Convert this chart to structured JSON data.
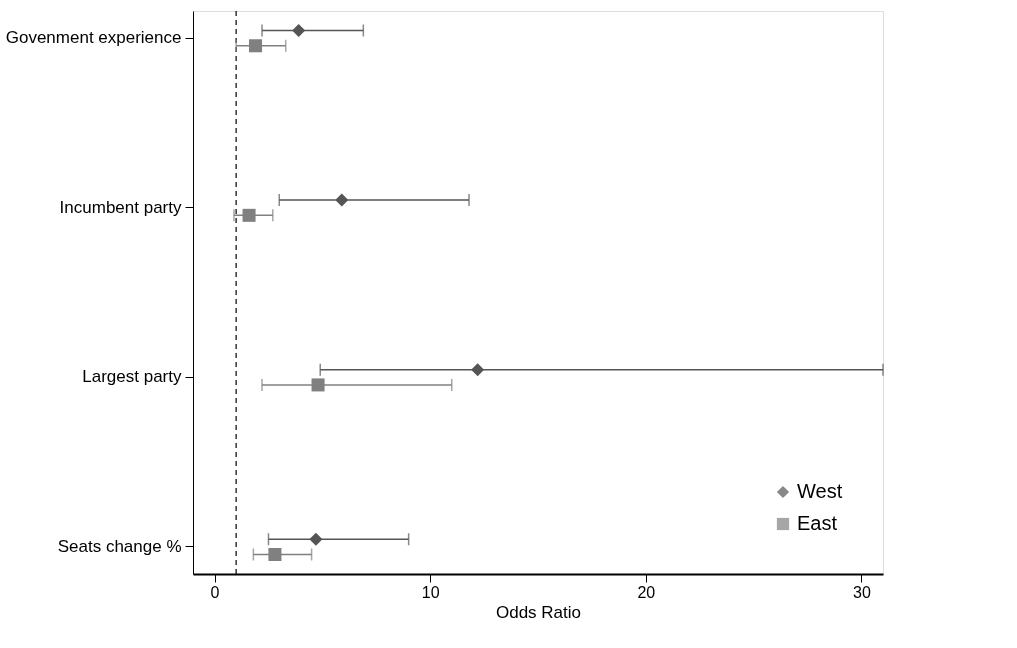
{
  "chart_data": {
    "type": "scatter",
    "orientation": "horizontal",
    "xlabel": "Odds Ratio",
    "categories": [
      "Govenment experience",
      "Incumbent party",
      "Largest party",
      "Seats change %"
    ],
    "series": [
      {
        "name": "West",
        "color": "#555555",
        "marker": "diamond",
        "values": [
          3.9,
          5.9,
          12.2,
          4.7
        ],
        "errors": [
          [
            2.2,
            6.9
          ],
          [
            3.0,
            11.8
          ],
          [
            4.9,
            31
          ],
          [
            2.5,
            9.0
          ]
        ]
      },
      {
        "name": "East",
        "color": "#808080",
        "marker": "square",
        "values": [
          1.9,
          1.6,
          4.8,
          2.8
        ],
        "errors": [
          [
            1.0,
            3.3
          ],
          [
            0.9,
            2.7
          ],
          [
            2.2,
            11.0
          ],
          [
            1.8,
            4.5
          ]
        ]
      }
    ],
    "xlim": [
      -1,
      31
    ],
    "xticks": [
      0,
      10,
      20,
      30
    ],
    "ref_lines": [
      {
        "axis": "x",
        "value": 1,
        "line_style": "dashed",
        "color": "#000000"
      }
    ],
    "grid": false,
    "legend": "bottom right"
  }
}
